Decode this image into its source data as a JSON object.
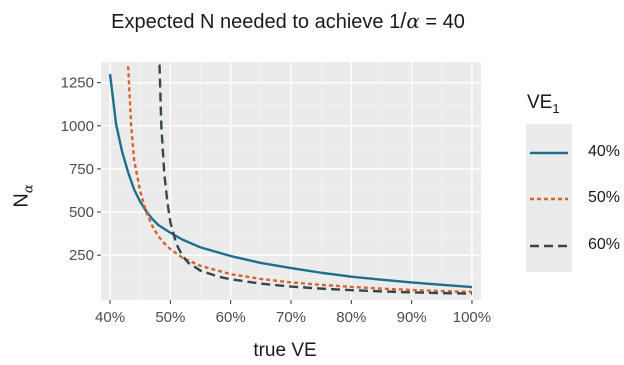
{
  "chart_data": {
    "type": "line",
    "title": {
      "prefix": "Expected N needed to achieve 1",
      "slash": "/",
      "symbol": "α",
      "suffix": "= 40"
    },
    "xlabel": "true VE",
    "ylabel": {
      "main": "N",
      "sub": "α"
    },
    "xlim": [
      0.385,
      1.015
    ],
    "ylim": [
      -10,
      1370
    ],
    "x_ticks": [
      0.4,
      0.5,
      0.6,
      0.7,
      0.8,
      0.9,
      1.0
    ],
    "x_tick_labels": [
      "40%",
      "50%",
      "60%",
      "70%",
      "80%",
      "90%",
      "100%"
    ],
    "y_ticks": [
      250,
      500,
      750,
      1000,
      1250
    ],
    "y_tick_labels": [
      "250",
      "500",
      "750",
      "1000",
      "1250"
    ],
    "grid": true,
    "legend": {
      "position": "right",
      "title_main": "VE",
      "title_sub": "1"
    },
    "series": [
      {
        "name": "40%",
        "color": "#1f6e8c",
        "dash": "solid",
        "x": [
          0.4,
          0.41,
          0.42,
          0.43,
          0.44,
          0.45,
          0.46,
          0.47,
          0.48,
          0.5,
          0.52,
          0.55,
          0.6,
          0.65,
          0.7,
          0.75,
          0.8,
          0.85,
          0.9,
          0.95,
          1.0
        ],
        "y": [
          1300,
          1010,
          850,
          730,
          630,
          560,
          505,
          460,
          425,
          380,
          340,
          295,
          245,
          205,
          175,
          148,
          125,
          108,
          92,
          78,
          65
        ]
      },
      {
        "name": "50%",
        "color": "#d4652f",
        "dash": "dotted",
        "x": [
          0.43,
          0.435,
          0.44,
          0.45,
          0.46,
          0.47,
          0.48,
          0.49,
          0.5,
          0.52,
          0.55,
          0.6,
          0.65,
          0.7,
          0.75,
          0.8,
          0.85,
          0.9,
          0.95,
          1.0
        ],
        "y": [
          1345,
          1000,
          800,
          620,
          500,
          420,
          360,
          318,
          285,
          235,
          188,
          140,
          112,
          92,
          78,
          66,
          56,
          48,
          42,
          37
        ]
      },
      {
        "name": "60%",
        "color": "#34474f",
        "dash": "dashed",
        "x": [
          0.482,
          0.485,
          0.49,
          0.495,
          0.5,
          0.51,
          0.52,
          0.53,
          0.55,
          0.58,
          0.6,
          0.65,
          0.7,
          0.75,
          0.8,
          0.85,
          0.9,
          0.95,
          1.0
        ],
        "y": [
          1355,
          1000,
          720,
          560,
          440,
          315,
          245,
          205,
          160,
          125,
          110,
          85,
          68,
          56,
          47,
          40,
          34,
          30,
          27
        ]
      }
    ]
  }
}
